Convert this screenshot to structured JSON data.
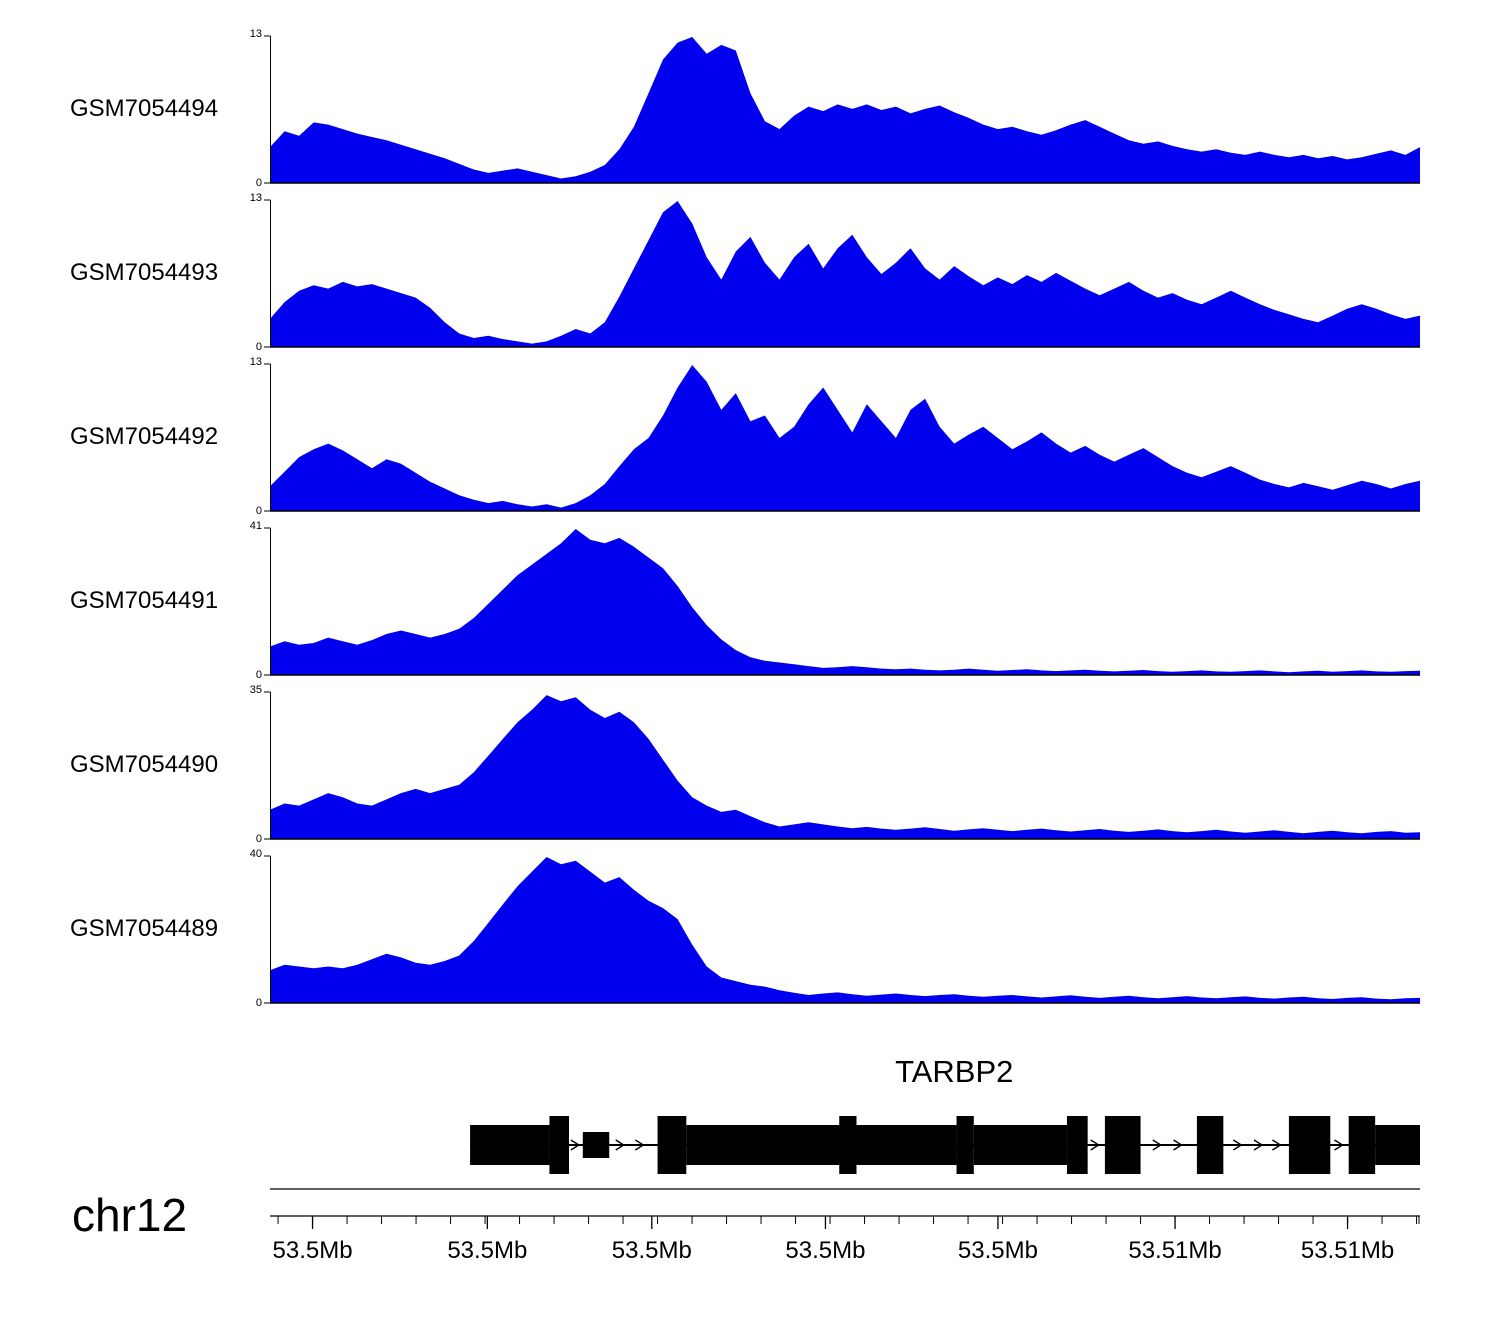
{
  "page": {
    "background": "#ffffff"
  },
  "chart_data": {
    "type": "area",
    "color": "#0000EE",
    "tracks": [
      {
        "label": "GSM7054494",
        "ymin": 0,
        "ymax": 13,
        "values": [
          3.2,
          4.6,
          4.2,
          5.4,
          5.2,
          4.8,
          4.4,
          4.1,
          3.8,
          3.4,
          3.0,
          2.6,
          2.2,
          1.7,
          1.2,
          0.9,
          1.1,
          1.3,
          1.0,
          0.7,
          0.4,
          0.6,
          1.0,
          1.6,
          3.0,
          5.0,
          8.0,
          11.0,
          12.5,
          13.0,
          11.5,
          12.3,
          11.8,
          8.0,
          5.5,
          4.8,
          6.0,
          6.8,
          6.4,
          7.0,
          6.6,
          7.0,
          6.5,
          6.8,
          6.2,
          6.6,
          6.9,
          6.3,
          5.8,
          5.2,
          4.8,
          5.0,
          4.6,
          4.3,
          4.7,
          5.2,
          5.6,
          5.0,
          4.4,
          3.8,
          3.5,
          3.7,
          3.3,
          3.0,
          2.8,
          3.0,
          2.7,
          2.5,
          2.8,
          2.5,
          2.3,
          2.5,
          2.2,
          2.4,
          2.1,
          2.3,
          2.6,
          2.9,
          2.5,
          3.2
        ]
      },
      {
        "label": "GSM7054493",
        "ymin": 0,
        "ymax": 13,
        "values": [
          2.5,
          4.0,
          5.0,
          5.5,
          5.2,
          5.8,
          5.4,
          5.6,
          5.2,
          4.8,
          4.4,
          3.5,
          2.2,
          1.2,
          0.8,
          1.0,
          0.7,
          0.5,
          0.3,
          0.5,
          1.0,
          1.6,
          1.2,
          2.2,
          4.5,
          7.0,
          9.5,
          12.0,
          13.0,
          11.0,
          8.0,
          6.0,
          8.5,
          9.8,
          7.5,
          6.0,
          8.0,
          9.2,
          7.0,
          8.8,
          10.0,
          8.0,
          6.5,
          7.5,
          8.8,
          7.0,
          6.0,
          7.2,
          6.3,
          5.5,
          6.2,
          5.6,
          6.4,
          5.8,
          6.6,
          5.9,
          5.2,
          4.6,
          5.2,
          5.8,
          5.0,
          4.4,
          4.8,
          4.2,
          3.8,
          4.4,
          5.0,
          4.4,
          3.8,
          3.3,
          2.9,
          2.5,
          2.2,
          2.8,
          3.4,
          3.8,
          3.4,
          2.9,
          2.5,
          2.8
        ]
      },
      {
        "label": "GSM7054492",
        "ymin": 0,
        "ymax": 13,
        "values": [
          2.2,
          3.5,
          4.8,
          5.5,
          6.0,
          5.4,
          4.6,
          3.8,
          4.6,
          4.2,
          3.4,
          2.6,
          2.0,
          1.4,
          1.0,
          0.7,
          0.9,
          0.6,
          0.4,
          0.6,
          0.3,
          0.7,
          1.4,
          2.4,
          4.0,
          5.5,
          6.5,
          8.5,
          11.0,
          13.0,
          11.5,
          9.0,
          10.5,
          8.0,
          8.5,
          6.5,
          7.5,
          9.5,
          11.0,
          9.0,
          7.0,
          9.5,
          8.0,
          6.5,
          9.0,
          10.0,
          7.5,
          6.0,
          6.8,
          7.5,
          6.5,
          5.5,
          6.2,
          7.0,
          6.0,
          5.2,
          5.8,
          5.0,
          4.4,
          5.0,
          5.6,
          4.8,
          4.0,
          3.4,
          3.0,
          3.5,
          4.0,
          3.4,
          2.8,
          2.4,
          2.1,
          2.5,
          2.2,
          1.9,
          2.3,
          2.7,
          2.4,
          2.0,
          2.4,
          2.7
        ]
      },
      {
        "label": "GSM7054491",
        "ymin": 0,
        "ymax": 41,
        "values": [
          8,
          9.5,
          8.5,
          9,
          10.5,
          9.5,
          8.5,
          9.8,
          11.5,
          12.5,
          11.5,
          10.5,
          11.5,
          13,
          16,
          20,
          24,
          28,
          31,
          34,
          37,
          41,
          38,
          37,
          38.5,
          36,
          33,
          30,
          25,
          19,
          14,
          10,
          7,
          5,
          4,
          3.5,
          3,
          2.5,
          2,
          2.2,
          2.5,
          2.2,
          1.8,
          1.6,
          1.8,
          1.5,
          1.3,
          1.5,
          1.8,
          1.5,
          1.2,
          1.4,
          1.6,
          1.3,
          1.1,
          1.3,
          1.5,
          1.2,
          1.0,
          1.2,
          1.4,
          1.1,
          0.9,
          1.1,
          1.3,
          1.0,
          0.9,
          1.1,
          1.3,
          1.0,
          0.8,
          1.0,
          1.2,
          0.9,
          1.1,
          1.3,
          1.0,
          0.9,
          1.1,
          1.2
        ]
      },
      {
        "label": "GSM7054490",
        "ymin": 0,
        "ymax": 35,
        "values": [
          7,
          8.5,
          8,
          9.5,
          11,
          10,
          8.5,
          8,
          9.5,
          11,
          12,
          11,
          12,
          13,
          16,
          20,
          24,
          28,
          31,
          34.5,
          33,
          34,
          31,
          29,
          30.5,
          28,
          24,
          19,
          14,
          10,
          8,
          6.5,
          7,
          5.5,
          4,
          3,
          3.5,
          4,
          3.5,
          3,
          2.6,
          2.9,
          2.5,
          2.2,
          2.5,
          2.8,
          2.4,
          2.0,
          2.3,
          2.6,
          2.2,
          1.9,
          2.2,
          2.5,
          2.1,
          1.8,
          2.1,
          2.4,
          2.0,
          1.7,
          2.0,
          2.3,
          1.9,
          1.6,
          1.9,
          2.2,
          1.8,
          1.5,
          1.8,
          2.1,
          1.7,
          1.4,
          1.7,
          2.0,
          1.6,
          1.4,
          1.7,
          1.9,
          1.5,
          1.6
        ]
      },
      {
        "label": "GSM7054489",
        "ymin": 0,
        "ymax": 40,
        "values": [
          9,
          10.5,
          10,
          9.5,
          10,
          9.5,
          10.5,
          12,
          13.5,
          12.5,
          11,
          10.5,
          11.5,
          13,
          17,
          22,
          27,
          32,
          36,
          40,
          38,
          39,
          36,
          33,
          34.5,
          31,
          28,
          26,
          23,
          16,
          10,
          7,
          6,
          5,
          4.5,
          3.5,
          2.8,
          2.2,
          2.6,
          2.9,
          2.4,
          2.0,
          2.3,
          2.6,
          2.2,
          1.9,
          2.2,
          2.4,
          2.0,
          1.7,
          2.0,
          2.2,
          1.8,
          1.5,
          1.8,
          2.1,
          1.7,
          1.4,
          1.7,
          2.0,
          1.6,
          1.3,
          1.6,
          1.9,
          1.5,
          1.3,
          1.6,
          1.8,
          1.4,
          1.2,
          1.5,
          1.7,
          1.3,
          1.1,
          1.4,
          1.6,
          1.2,
          1.0,
          1.3,
          1.4
        ]
      }
    ],
    "gene_track": {
      "name": "TARBP2",
      "exons": [
        {
          "start": 0.174,
          "end": 0.243,
          "h": "med"
        },
        {
          "start": 0.243,
          "end": 0.26,
          "h": "tall"
        },
        {
          "start": 0.272,
          "end": 0.295,
          "h": "short"
        },
        {
          "start": 0.337,
          "end": 0.362,
          "h": "tall"
        },
        {
          "start": 0.362,
          "end": 0.497,
          "h": "med"
        },
        {
          "start": 0.495,
          "end": 0.51,
          "h": "tall"
        },
        {
          "start": 0.51,
          "end": 0.597,
          "h": "med"
        },
        {
          "start": 0.597,
          "end": 0.612,
          "h": "tall"
        },
        {
          "start": 0.612,
          "end": 0.693,
          "h": "med"
        },
        {
          "start": 0.693,
          "end": 0.711,
          "h": "tall"
        },
        {
          "start": 0.726,
          "end": 0.757,
          "h": "tall"
        },
        {
          "start": 0.806,
          "end": 0.829,
          "h": "tall"
        },
        {
          "start": 0.886,
          "end": 0.922,
          "h": "tall"
        },
        {
          "start": 0.938,
          "end": 0.961,
          "h": "tall"
        },
        {
          "start": 0.961,
          "end": 1.0,
          "h": "med"
        }
      ],
      "intron_arrows": [
        0.266,
        0.305,
        0.322,
        0.718,
        0.772,
        0.79,
        0.842,
        0.86,
        0.876,
        0.93
      ]
    },
    "axis": {
      "chrom": "chr12",
      "ticks": [
        {
          "pos": 0.037,
          "label": "53.5Mb"
        },
        {
          "pos": 0.189,
          "label": "53.5Mb"
        },
        {
          "pos": 0.332,
          "label": "53.5Mb"
        },
        {
          "pos": 0.483,
          "label": "53.5Mb"
        },
        {
          "pos": 0.633,
          "label": "53.5Mb"
        },
        {
          "pos": 0.787,
          "label": "53.51Mb"
        },
        {
          "pos": 0.937,
          "label": "53.51Mb"
        }
      ]
    }
  }
}
